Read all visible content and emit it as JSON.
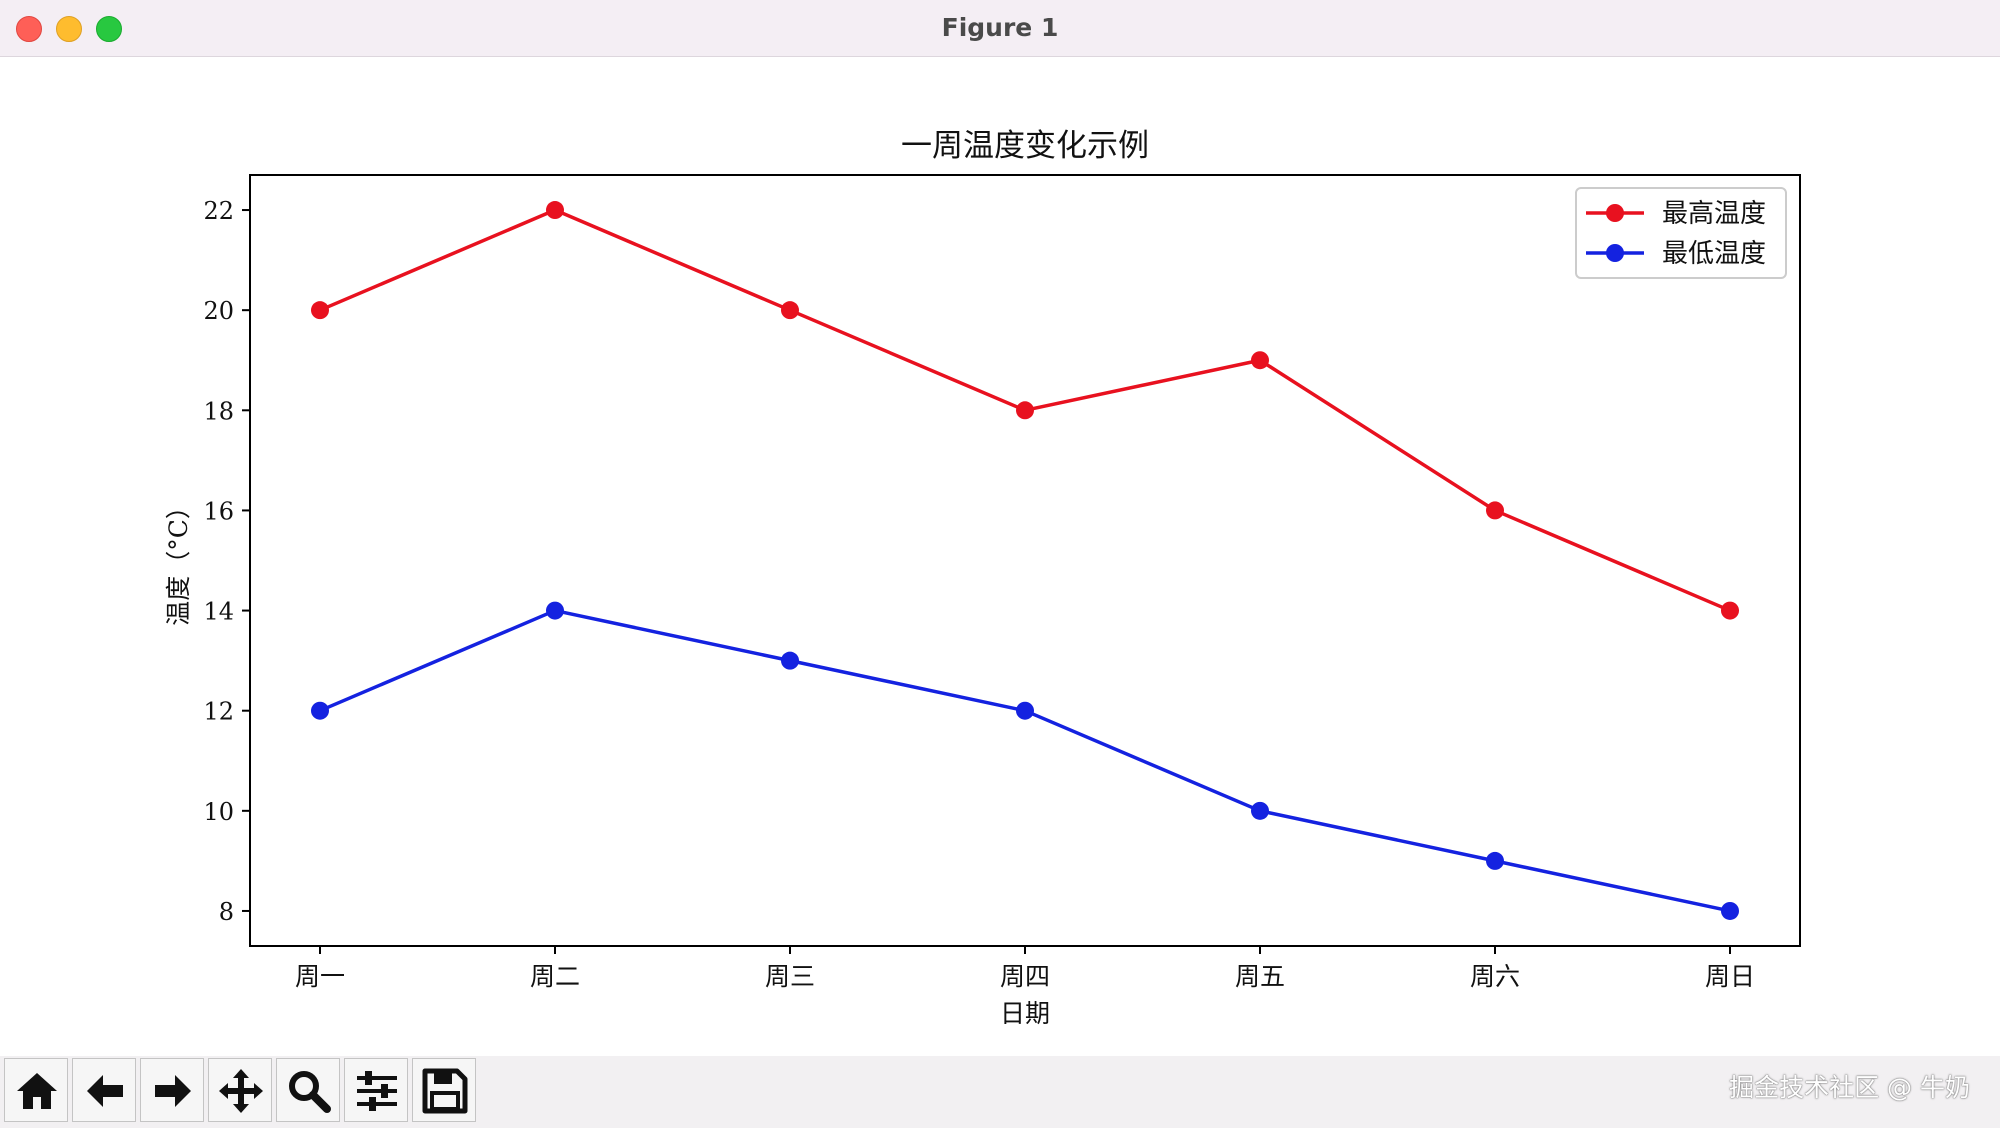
{
  "window": {
    "title": "Figure 1"
  },
  "chart_data": {
    "type": "line",
    "title": "一周温度变化示例",
    "xlabel": "日期",
    "ylabel": "温度（°C）",
    "categories": [
      "周一",
      "周二",
      "周三",
      "周四",
      "周五",
      "周六",
      "周日"
    ],
    "series": [
      {
        "name": "最高温度",
        "color": "#e8111f",
        "values": [
          20,
          22,
          20,
          18,
          19,
          16,
          14
        ]
      },
      {
        "name": "最低温度",
        "color": "#1422e0",
        "values": [
          12,
          14,
          13,
          12,
          10,
          9,
          8
        ]
      }
    ],
    "yticks": [
      8,
      10,
      12,
      14,
      16,
      18,
      20,
      22
    ],
    "ylim": [
      7.3,
      22.7
    ],
    "grid": false,
    "legend": "top-right",
    "marker": "circle"
  },
  "toolbar": {
    "buttons": [
      {
        "name": "home-button",
        "icon": "home-icon"
      },
      {
        "name": "back-button",
        "icon": "arrow-left-icon"
      },
      {
        "name": "forward-button",
        "icon": "arrow-right-icon"
      },
      {
        "name": "pan-button",
        "icon": "move-icon"
      },
      {
        "name": "zoom-button",
        "icon": "magnifier-icon"
      },
      {
        "name": "configure-subplots-button",
        "icon": "sliders-icon"
      },
      {
        "name": "save-button",
        "icon": "floppy-disk-icon"
      }
    ]
  },
  "watermark": "掘金技术社区 @ 牛奶"
}
